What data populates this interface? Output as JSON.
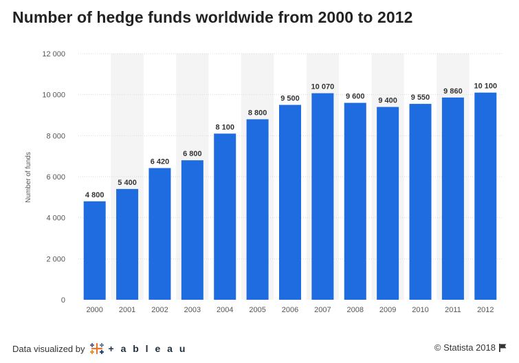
{
  "chart_data": {
    "type": "bar",
    "title": "Number of hedge funds worldwide from 2000 to 2012",
    "xlabel": "",
    "ylabel": "Number of funds",
    "categories": [
      "2000",
      "2001",
      "2002",
      "2003",
      "2004",
      "2005",
      "2006",
      "2007",
      "2008",
      "2009",
      "2010",
      "2011",
      "2012"
    ],
    "values": [
      4800,
      5400,
      6420,
      6800,
      8100,
      8800,
      9500,
      10070,
      9600,
      9400,
      9550,
      9860,
      10100
    ],
    "value_labels": [
      "4 800",
      "5 400",
      "6 420",
      "6 800",
      "8 100",
      "8 800",
      "9 500",
      "10 070",
      "9 600",
      "9 400",
      "9 550",
      "9 860",
      "10 100"
    ],
    "yticks": [
      0,
      2000,
      4000,
      6000,
      8000,
      10000,
      12000
    ],
    "ytick_labels": [
      "0",
      "2 000",
      "4 000",
      "6 000",
      "8 000",
      "10 000",
      "12 000"
    ],
    "ylim": [
      0,
      12000
    ],
    "grid": true,
    "legend": "none",
    "colors": {
      "bar": "#1f6be0",
      "alt_band": "#f4f4f4",
      "grid": "#d9d9d9"
    }
  },
  "footer": {
    "left_text": "Data visualized by",
    "brand": "+ a b l e a u",
    "brand_icon": "tableau-logo-icon",
    "right_text": "© Statista 2018",
    "right_icon": "flag-icon"
  }
}
